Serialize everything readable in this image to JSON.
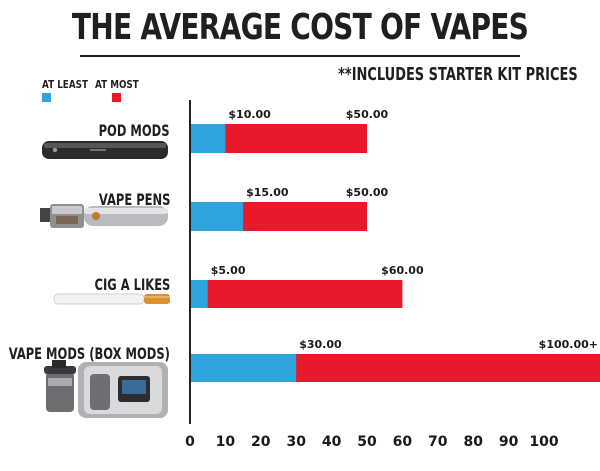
{
  "title": "THE AVERAGE COST OF VAPES",
  "note": "**INCLUDES STARTER KIT PRICES",
  "colors": {
    "at_least": "#2ea3dc",
    "at_most": "#e8192b",
    "axis": "#222222"
  },
  "legend": [
    {
      "label": "AT LEAST",
      "color": "#2ea3dc"
    },
    {
      "label": "AT MOST",
      "color": "#e8192b"
    }
  ],
  "chart_data": {
    "type": "bar",
    "orientation": "horizontal",
    "stacked": false,
    "categories": [
      "POD MODS",
      "VAPE PENS",
      "CIG A LIKES",
      "VAPE MODS (BOX MODS)"
    ],
    "icons": [
      "pod-mod-device-icon",
      "vape-pen-device-icon",
      "cigalike-device-icon",
      "box-mod-device-icon"
    ],
    "series": [
      {
        "name": "AT LEAST",
        "values": [
          10,
          15,
          5,
          30
        ],
        "labels": [
          "$10.00",
          "$15.00",
          "$5.00",
          "$30.00"
        ]
      },
      {
        "name": "AT MOST",
        "values": [
          50,
          50,
          60,
          120
        ],
        "labels": [
          "$50.00",
          "$50.00",
          "$60.00",
          "$100.00+"
        ]
      }
    ],
    "xticks": [
      0,
      10,
      20,
      30,
      40,
      50,
      60,
      70,
      80,
      90,
      100
    ],
    "xlim": [
      0,
      120
    ],
    "grid": false,
    "legend_position": "top-left"
  }
}
